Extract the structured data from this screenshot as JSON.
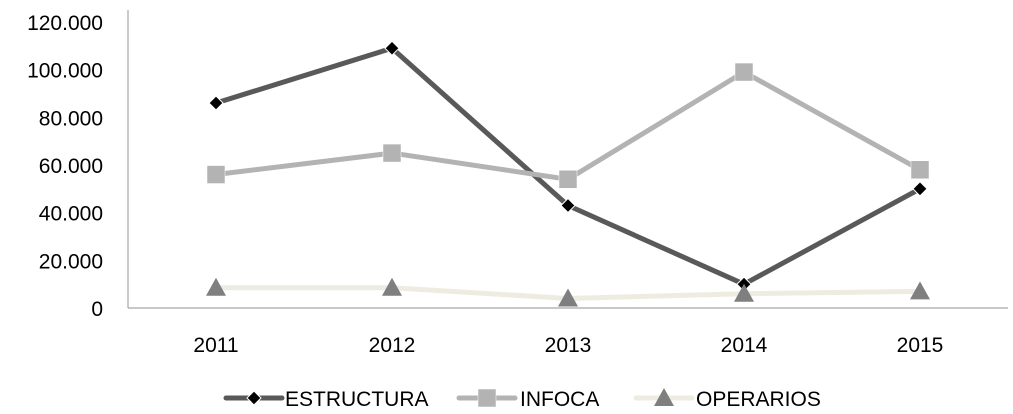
{
  "chart_data": {
    "type": "line",
    "categories": [
      "2011",
      "2012",
      "2013",
      "2014",
      "2015"
    ],
    "series": [
      {
        "name": "ESTRUCTURA",
        "values": [
          86000,
          109000,
          43000,
          10000,
          50000
        ],
        "color": "#595959",
        "marker": "diamond"
      },
      {
        "name": "INFOCA",
        "values": [
          56000,
          65000,
          54000,
          99000,
          58000
        ],
        "color": "#b3b3b3",
        "marker": "square"
      },
      {
        "name": "OPERARIOS",
        "values": [
          8500,
          8500,
          4000,
          6000,
          7000
        ],
        "color": "#eeece1",
        "marker": "triangle",
        "marker_color": "#7f7f7f"
      }
    ],
    "y_ticks": [
      "0",
      "20.000",
      "40.000",
      "60.000",
      "80.000",
      "100.000",
      "120.000"
    ],
    "ylim": [
      0,
      120000
    ],
    "title": "",
    "xlabel": "",
    "ylabel": "",
    "grid": false,
    "legend": "bottom"
  }
}
